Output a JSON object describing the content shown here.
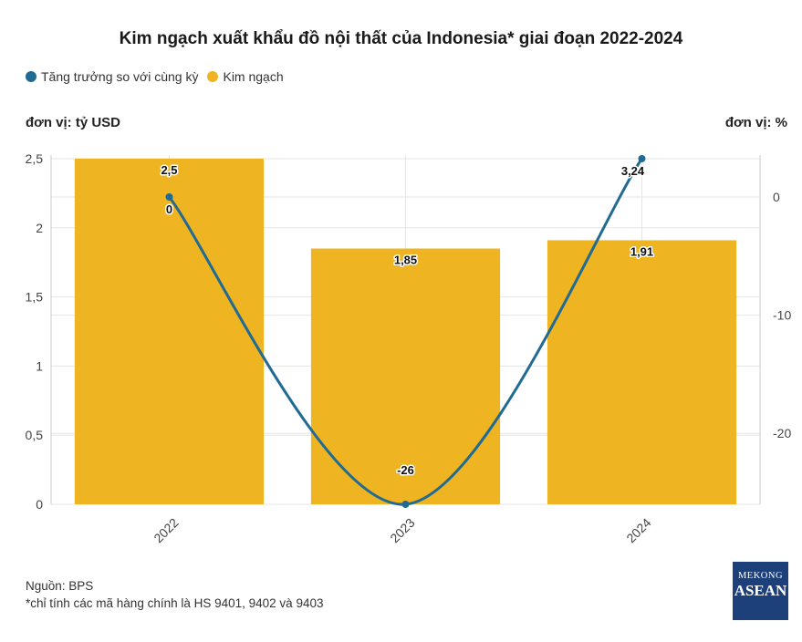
{
  "header": {
    "title": "Kim ngạch xuất khẩu đồ nội thất của Indonesia* giai đoạn 2022-2024",
    "unit_left": "đơn vị: tỷ USD",
    "unit_right": "đơn vị: %"
  },
  "footer": {
    "source": "Nguồn: BPS",
    "note": "*chỉ tính các mã hàng chính là HS 9401, 9402 và 9403"
  },
  "logo": {
    "line1": "MEKONG",
    "line2": "ASEAN"
  },
  "colors": {
    "bar": "#eeb422",
    "line": "#216a93",
    "grid": "#e6e6e6"
  },
  "chart_data": {
    "type": "bar",
    "categories": [
      "2022",
      "2023",
      "2024"
    ],
    "series": [
      {
        "name": "Kim ngạch",
        "type": "bar",
        "axis": "left",
        "values": [
          2.5,
          1.85,
          1.91
        ],
        "labels": [
          "2,5",
          "1,85",
          "1,91"
        ]
      },
      {
        "name": "Tăng trưởng so với cùng kỳ",
        "type": "line",
        "axis": "right",
        "values": [
          0,
          -26,
          3.24
        ],
        "labels": [
          "0",
          "-26",
          "3,24"
        ]
      }
    ],
    "y_left": {
      "range": [
        0,
        2.5
      ],
      "ticks": [
        0,
        0.5,
        1,
        1.5,
        2,
        2.5
      ],
      "tick_labels": [
        "0",
        "0,5",
        "1",
        "1,5",
        "2",
        "2,5"
      ]
    },
    "y_right": {
      "range": [
        -26,
        3.24
      ],
      "ticks": [
        0,
        -10,
        -20
      ],
      "tick_labels": [
        "0",
        "-10",
        "-20"
      ]
    },
    "legend": [
      "Tăng trưởng so với cùng kỳ",
      "Kim ngạch"
    ],
    "legend_position": "top-left",
    "grid": true
  }
}
